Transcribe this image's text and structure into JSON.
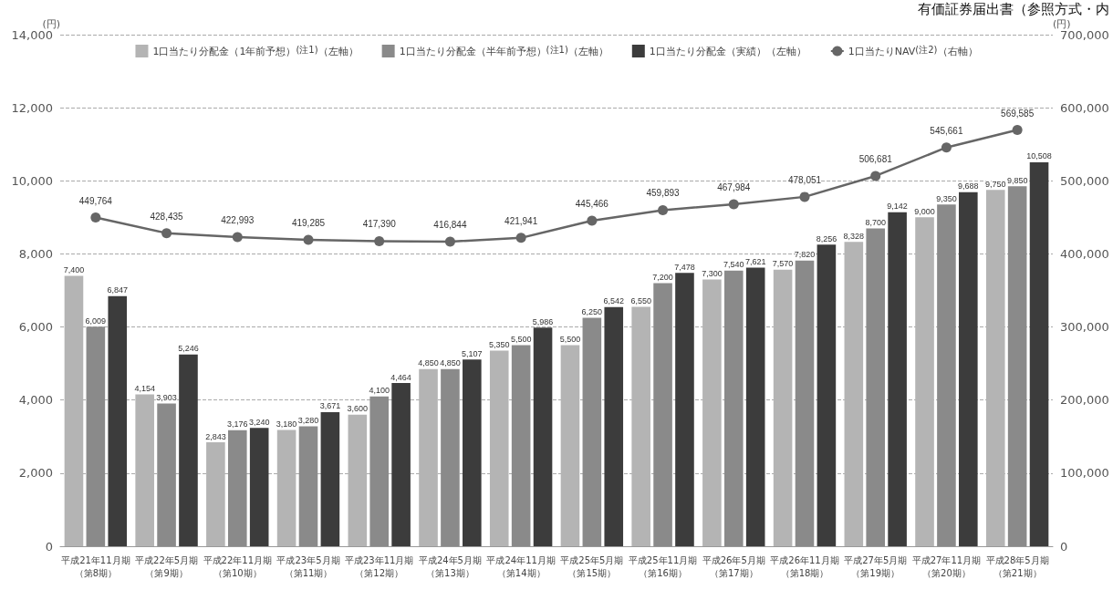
{
  "chart_data": {
    "type": "bar",
    "annotations": [
      "有価証券届出書（参照方式・内"
    ],
    "ylabel": "(円)",
    "y2label": "(円)",
    "categories": [
      "平成21年11月期（第8期）",
      "平成22年5月期（第9期）",
      "平成22年11月期（第10期）",
      "平成23年5月期（第11期）",
      "平成23年11月期（第12期）",
      "平成24年5月期（第13期）",
      "平成24年11月期（第14期）",
      "平成25年5月期（第15期）",
      "平成25年11月期（第16期）",
      "平成26年5月期（第17期）",
      "平成26年11月期（第18期）",
      "平成27年5月期（第19期）",
      "平成27年11月期（第20期）",
      "平成28年5月期（第21期）"
    ],
    "series": [
      {
        "name": "1口当たり分配金（1年前予想）$^{(注1)}$（左軸）",
        "color": "#b4b4b4",
        "values": [
          7400,
          4154,
          2843,
          3180,
          3600,
          4850,
          5350,
          5500,
          6550,
          7300,
          7570,
          8328,
          9000,
          9750
        ],
        "value_labels": [
          "7,400",
          "4,154",
          "2,843",
          "3,180",
          "3,600",
          "4,850",
          "5,350",
          "5,500",
          "6,550",
          "7,300",
          "7,570",
          "8,328",
          "9,000",
          "9,750"
        ]
      },
      {
        "name": "1口当たり分配金（半年前予想）$^{(注1)}$（左軸）",
        "color": "#8a8a8a",
        "values": [
          6009,
          3903,
          3176,
          3280,
          4100,
          4850,
          5500,
          6250,
          7200,
          7540,
          7820,
          8700,
          9350,
          9850
        ],
        "value_labels": [
          "6,009",
          "3,903",
          "3,176",
          "3,280",
          "4,100",
          "4,850",
          "5,500",
          "6,250",
          "7,200",
          "7,540",
          "7,820",
          "8,700",
          "9,350",
          "9,850"
        ]
      },
      {
        "name": "1口当たり分配金（実績）（左軸）",
        "color": "#3c3c3c",
        "values": [
          6847,
          5246,
          3240,
          3671,
          4464,
          5107,
          5986,
          6542,
          7478,
          7621,
          8256,
          9142,
          9688,
          10508
        ],
        "value_labels": [
          "6,847",
          "5,246",
          "3,240",
          "3,671",
          "4,464",
          "5,107",
          "5,986",
          "6,542",
          "7,478",
          "7,621",
          "8,256",
          "9,142",
          "9,688",
          "10,508"
        ]
      },
      {
        "name": "1口当たりNAV$^{(注2)}$（右軸）",
        "type": "line",
        "axis": "y2",
        "color": "#666666",
        "marker": "circle",
        "values": [
          449764,
          428435,
          422993,
          419285,
          417390,
          416844,
          421941,
          445466,
          459893,
          467984,
          478051,
          506681,
          545661,
          569585
        ],
        "value_labels": [
          "449,764",
          "428,435",
          "422,993",
          "419,285",
          "417,390",
          "416,844",
          "421,941",
          "445,466",
          "459,893",
          "467,984",
          "478,051",
          "506,681",
          "545,661",
          "569,585"
        ]
      }
    ],
    "ylim": [
      0,
      14000
    ],
    "yticks": [
      0,
      {
        "value": 2000,
        "label": "2,000"
      },
      {
        "value": 4000,
        "label": "4,000"
      },
      {
        "value": 6000,
        "label": "6,000"
      },
      {
        "value": 8000,
        "label": "8,000"
      },
      {
        "value": 10000,
        "label": "10,000"
      },
      {
        "value": 12000,
        "label": "12,000"
      },
      {
        "value": 14000,
        "label": "14,000"
      }
    ],
    "y2lim": [
      0,
      700000
    ],
    "y2ticks": [
      0,
      {
        "value": 100000,
        "label": "100,000"
      },
      {
        "value": 200000,
        "label": "200,000"
      },
      {
        "value": 300000,
        "label": "300,000"
      },
      {
        "value": 400000,
        "label": "400,000"
      },
      {
        "value": 500000,
        "label": "500,000"
      },
      {
        "value": 600000,
        "label": "600,000"
      },
      {
        "value": 700000,
        "label": "700,000"
      }
    ],
    "grid": "y",
    "legend": "top"
  }
}
